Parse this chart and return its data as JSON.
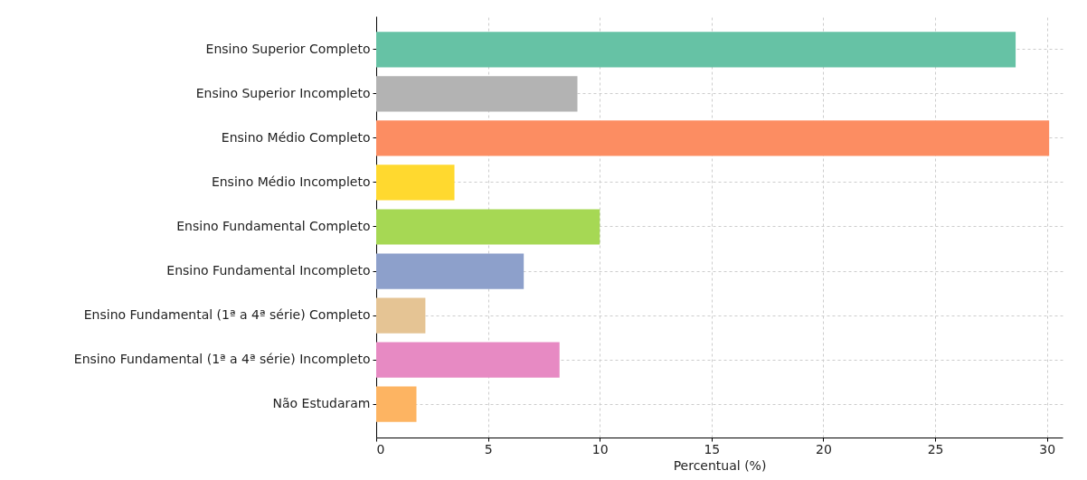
{
  "chart_data": {
    "type": "bar",
    "orientation": "horizontal",
    "xlabel": "Percentual (%)",
    "categories": [
      "Ensino Superior Completo",
      "Ensino Superior Incompleto",
      "Ensino Médio Completo",
      "Ensino Médio Incompleto",
      "Ensino Fundamental Completo",
      "Ensino Fundamental Incompleto",
      "Ensino Fundamental (1ª a 4ª série) Completo",
      "Ensino Fundamental (1ª a 4ª série) Incompleto",
      "Não Estudaram"
    ],
    "values": [
      28.6,
      9.0,
      30.1,
      3.5,
      10.0,
      6.6,
      2.2,
      8.2,
      1.8
    ],
    "colors": [
      "#66c2a5",
      "#b3b3b3",
      "#fc8d62",
      "#ffd92f",
      "#a6d854",
      "#8da0cb",
      "#e5c494",
      "#e78ac3",
      "#fdb462"
    ],
    "xlim": [
      0,
      30.7
    ],
    "xticks": [
      0,
      5,
      10,
      15,
      20,
      25,
      30
    ],
    "grid": true
  }
}
